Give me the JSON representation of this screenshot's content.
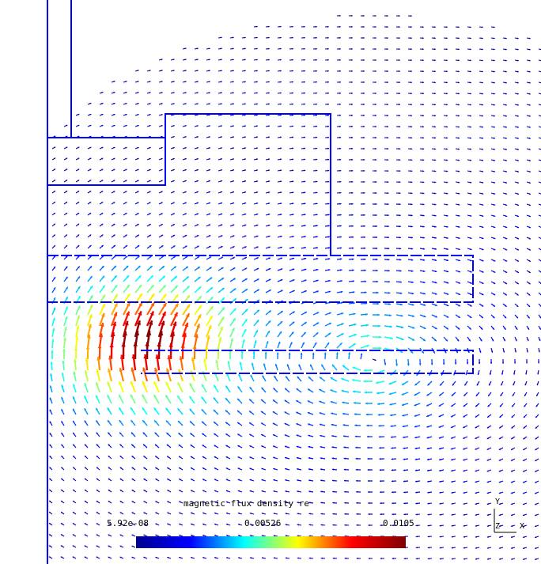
{
  "legend": {
    "title": "magnetic flux density re",
    "min_label": "5.92e-08",
    "mid_label": "0.00526",
    "max_label": "0.0105",
    "colormap": [
      "#00008f",
      "#0000ff",
      "#00ffff",
      "#ffff00",
      "#ff0000",
      "#800000"
    ]
  },
  "axes": {
    "y": "Y",
    "z": "Z",
    "x": "X"
  },
  "colors": {
    "geometry_line": "#0000ff",
    "background": "#ffffff"
  }
}
